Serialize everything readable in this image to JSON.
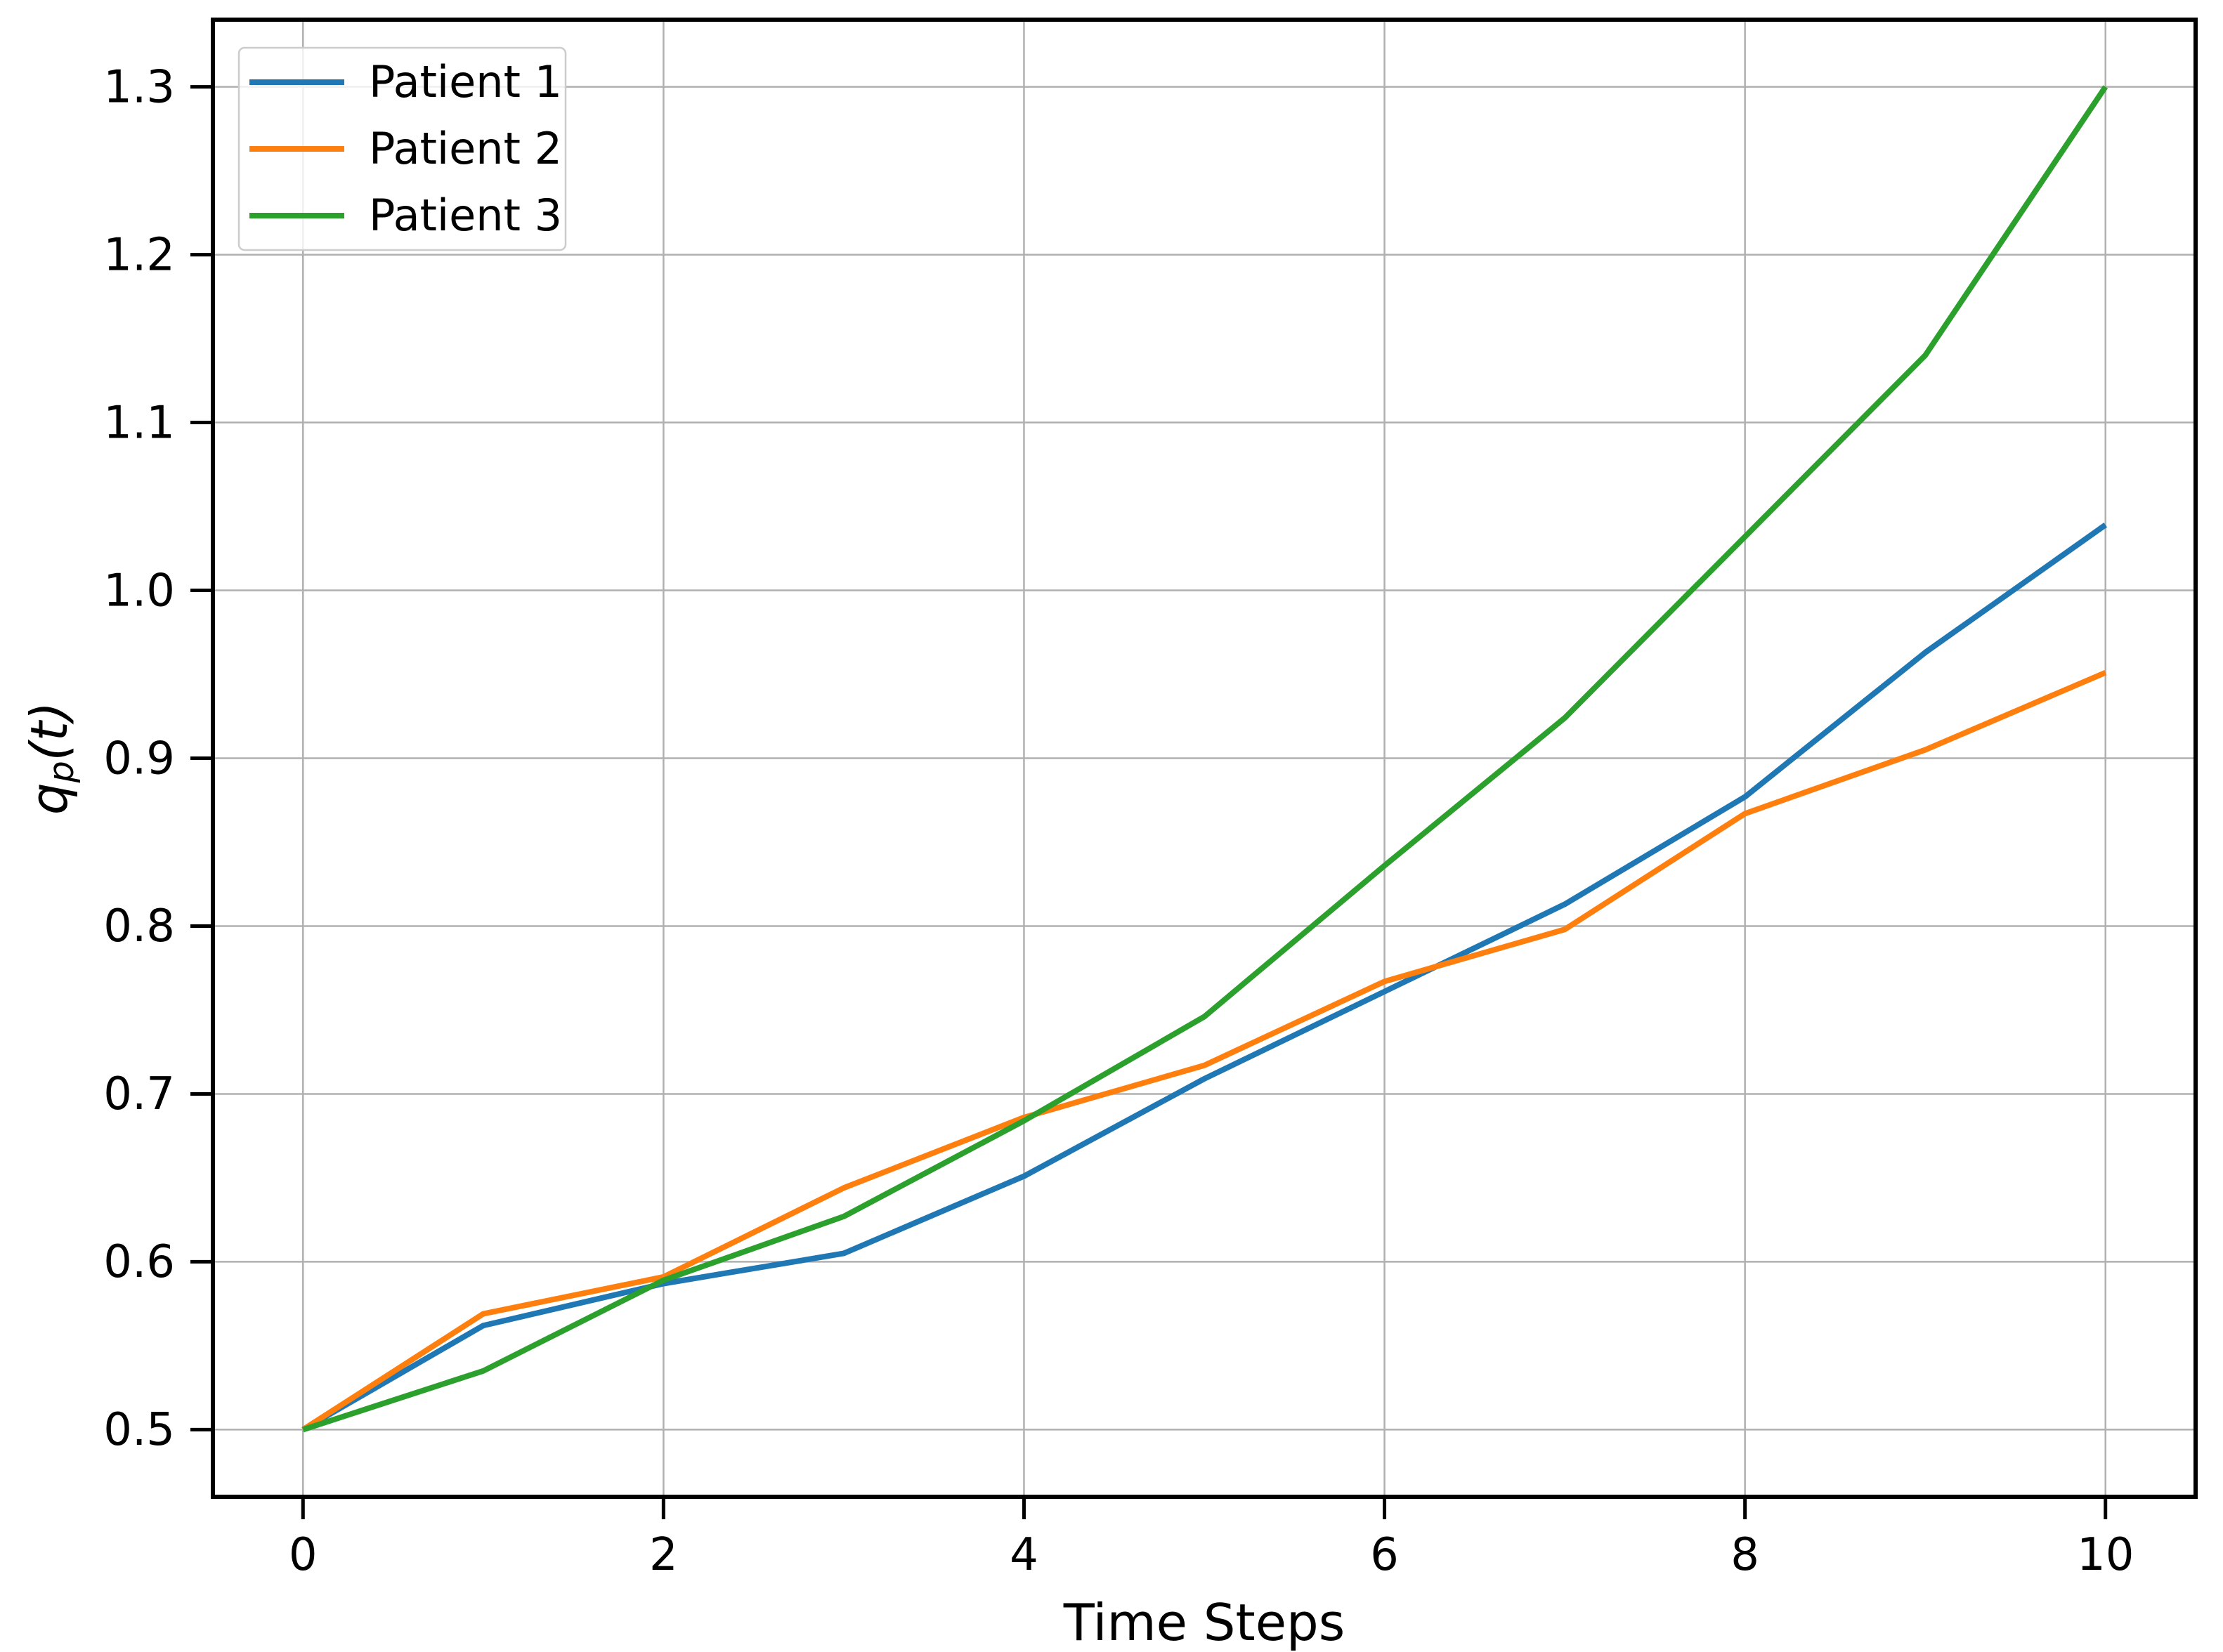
{
  "chart_data": {
    "type": "line",
    "title": "",
    "xlabel": "Time Steps",
    "ylabel": {
      "base": "q",
      "sub": "p",
      "arg": "(t)"
    },
    "x": [
      0,
      1,
      2,
      3,
      4,
      5,
      6,
      7,
      8,
      9,
      10
    ],
    "series": [
      {
        "name": "Patient 1",
        "color": "#1f77b4",
        "values": [
          0.5,
          0.562,
          0.587,
          0.605,
          0.651,
          0.709,
          0.761,
          0.813,
          0.877,
          0.963,
          1.039
        ]
      },
      {
        "name": "Patient 2",
        "color": "#ff7f0e",
        "values": [
          0.5,
          0.569,
          0.591,
          0.644,
          0.686,
          0.717,
          0.767,
          0.798,
          0.867,
          0.905,
          0.951
        ]
      },
      {
        "name": "Patient 3",
        "color": "#2ca02c",
        "values": [
          0.5,
          0.535,
          0.589,
          0.627,
          0.684,
          0.746,
          0.836,
          0.924,
          1.032,
          1.14,
          1.3
        ]
      }
    ],
    "xlim": [
      -0.5,
      10.5
    ],
    "ylim": [
      0.46,
      1.34
    ],
    "xticks": [
      0,
      2,
      4,
      6,
      8,
      10
    ],
    "xtick_labels": [
      "0",
      "2",
      "4",
      "6",
      "8",
      "10"
    ],
    "yticks": [
      0.5,
      0.6,
      0.7,
      0.8,
      0.9,
      1.0,
      1.1,
      1.2,
      1.3
    ],
    "ytick_labels": [
      "0.5",
      "0.6",
      "0.7",
      "0.8",
      "0.9",
      "1.0",
      "1.1",
      "1.2",
      "1.3"
    ],
    "grid": true,
    "legend_position": "upper left",
    "colors": {
      "grid": "#b0b0b0",
      "spine": "#000000",
      "tick": "#000000",
      "text": "#000000",
      "legend_border": "#cccccc",
      "legend_bg_rgba": "rgba(255,255,255,0.8)",
      "background": "#ffffff"
    }
  }
}
